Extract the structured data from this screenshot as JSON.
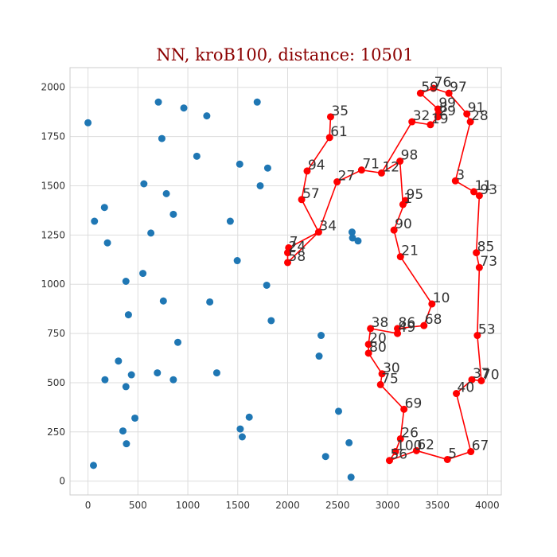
{
  "chart_data": {
    "type": "scatter",
    "title": "NN, kroB100, distance: 10501",
    "xlabel": "",
    "ylabel": "",
    "xlim": [
      -180,
      4140
    ],
    "ylim": [
      -70,
      2100
    ],
    "xticks": [
      0,
      500,
      1000,
      1500,
      2000,
      2500,
      3000,
      3500,
      4000
    ],
    "yticks": [
      0,
      250,
      500,
      750,
      1000,
      1250,
      1500,
      1750,
      2000
    ],
    "xtick_labels": [
      "0",
      "500",
      "1000",
      "1500",
      "2000",
      "2500",
      "3000",
      "3500",
      "4000"
    ],
    "ytick_labels": [
      "0",
      "250",
      "500",
      "750",
      "1000",
      "1250",
      "1500",
      "1750",
      "2000"
    ],
    "grid": true,
    "colors": {
      "unvisited": "#1f77b4",
      "route": "#ff0000",
      "title": "#8b0000"
    },
    "unvisited_points": [
      [
        0,
        1820
      ],
      [
        705,
        1925
      ],
      [
        960,
        1895
      ],
      [
        1190,
        1855
      ],
      [
        1695,
        1925
      ],
      [
        740,
        1740
      ],
      [
        1090,
        1650
      ],
      [
        1520,
        1610
      ],
      [
        1800,
        1590
      ],
      [
        1725,
        1500
      ],
      [
        560,
        1510
      ],
      [
        785,
        1460
      ],
      [
        855,
        1355
      ],
      [
        1425,
        1320
      ],
      [
        165,
        1390
      ],
      [
        65,
        1320
      ],
      [
        195,
        1210
      ],
      [
        630,
        1260
      ],
      [
        1495,
        1120
      ],
      [
        550,
        1055
      ],
      [
        380,
        1015
      ],
      [
        1790,
        995
      ],
      [
        755,
        915
      ],
      [
        1220,
        910
      ],
      [
        405,
        845
      ],
      [
        1835,
        815
      ],
      [
        900,
        705
      ],
      [
        2335,
        740
      ],
      [
        305,
        610
      ],
      [
        2315,
        635
      ],
      [
        435,
        540
      ],
      [
        695,
        550
      ],
      [
        855,
        515
      ],
      [
        1290,
        550
      ],
      [
        170,
        515
      ],
      [
        380,
        480
      ],
      [
        470,
        320
      ],
      [
        2510,
        355
      ],
      [
        1615,
        325
      ],
      [
        1525,
        265
      ],
      [
        350,
        255
      ],
      [
        1545,
        225
      ],
      [
        385,
        190
      ],
      [
        2615,
        195
      ],
      [
        2380,
        125
      ],
      [
        55,
        80
      ],
      [
        2635,
        20
      ],
      [
        2645,
        1265
      ],
      [
        2650,
        1235
      ],
      [
        2705,
        1220
      ]
    ],
    "route_points": [
      {
        "label": "35",
        "x": 2430,
        "y": 1850
      },
      {
        "label": "61",
        "x": 2420,
        "y": 1745
      },
      {
        "label": "94",
        "x": 2195,
        "y": 1575
      },
      {
        "label": "57",
        "x": 2140,
        "y": 1430
      },
      {
        "label": "34",
        "x": 2310,
        "y": 1265
      },
      {
        "label": "7",
        "x": 2010,
        "y": 1185
      },
      {
        "label": "24",
        "x": 2000,
        "y": 1160
      },
      {
        "label": "58",
        "x": 2000,
        "y": 1110
      },
      {
        "label": "27",
        "x": 2495,
        "y": 1520
      },
      {
        "label": "71",
        "x": 2740,
        "y": 1580
      },
      {
        "label": "12",
        "x": 2940,
        "y": 1565
      },
      {
        "label": "98",
        "x": 3125,
        "y": 1625
      },
      {
        "label": "1",
        "x": 3155,
        "y": 1405
      },
      {
        "label": "95",
        "x": 3180,
        "y": 1425
      },
      {
        "label": "90",
        "x": 3065,
        "y": 1275
      },
      {
        "label": "21",
        "x": 3130,
        "y": 1140
      },
      {
        "label": "10",
        "x": 3445,
        "y": 900
      },
      {
        "label": "68",
        "x": 3365,
        "y": 790
      },
      {
        "label": "86",
        "x": 3100,
        "y": 775
      },
      {
        "label": "49",
        "x": 3100,
        "y": 750
      },
      {
        "label": "38",
        "x": 2830,
        "y": 775
      },
      {
        "label": "20",
        "x": 2810,
        "y": 695
      },
      {
        "label": "80",
        "x": 2810,
        "y": 650
      },
      {
        "label": "30",
        "x": 2945,
        "y": 545
      },
      {
        "label": "75",
        "x": 2930,
        "y": 490
      },
      {
        "label": "69",
        "x": 3165,
        "y": 365
      },
      {
        "label": "26",
        "x": 3130,
        "y": 215
      },
      {
        "label": "100",
        "x": 3080,
        "y": 150
      },
      {
        "label": "56",
        "x": 3020,
        "y": 105
      },
      {
        "label": "62",
        "x": 3290,
        "y": 155
      },
      {
        "label": "5",
        "x": 3600,
        "y": 110
      },
      {
        "label": "67",
        "x": 3835,
        "y": 150
      },
      {
        "label": "40",
        "x": 3690,
        "y": 445
      },
      {
        "label": "37",
        "x": 3845,
        "y": 515
      },
      {
        "label": "70",
        "x": 3940,
        "y": 510
      },
      {
        "label": "53",
        "x": 3900,
        "y": 740
      },
      {
        "label": "73",
        "x": 3920,
        "y": 1085
      },
      {
        "label": "85",
        "x": 3890,
        "y": 1160
      },
      {
        "label": "93",
        "x": 3920,
        "y": 1450
      },
      {
        "label": "11",
        "x": 3865,
        "y": 1470
      },
      {
        "label": "3",
        "x": 3680,
        "y": 1525
      },
      {
        "label": "28",
        "x": 3830,
        "y": 1825
      },
      {
        "label": "91",
        "x": 3795,
        "y": 1865
      },
      {
        "label": "97",
        "x": 3615,
        "y": 1970
      },
      {
        "label": "76",
        "x": 3460,
        "y": 1995
      },
      {
        "label": "59",
        "x": 3330,
        "y": 1970
      },
      {
        "label": "99",
        "x": 3505,
        "y": 1890
      },
      {
        "label": "8",
        "x": 3510,
        "y": 1865
      },
      {
        "label": "29",
        "x": 3505,
        "y": 1850
      },
      {
        "label": "32",
        "x": 3245,
        "y": 1825
      },
      {
        "label": "19",
        "x": 3430,
        "y": 1810
      }
    ],
    "route_order": [
      "35",
      "61",
      "94",
      "57",
      "34",
      "7",
      "24",
      "58",
      "34",
      "27",
      "71",
      "12",
      "98",
      "1",
      "95",
      "90",
      "21",
      "10",
      "68",
      "86",
      "49",
      "38",
      "20",
      "80",
      "30",
      "75",
      "69",
      "26",
      "100",
      "56",
      "62",
      "5",
      "67",
      "40",
      "37",
      "70",
      "53",
      "73",
      "85",
      "93",
      "11",
      "3",
      "28",
      "91",
      "97",
      "76",
      "59",
      "99",
      "8",
      "29",
      "19",
      "32",
      "12"
    ]
  }
}
